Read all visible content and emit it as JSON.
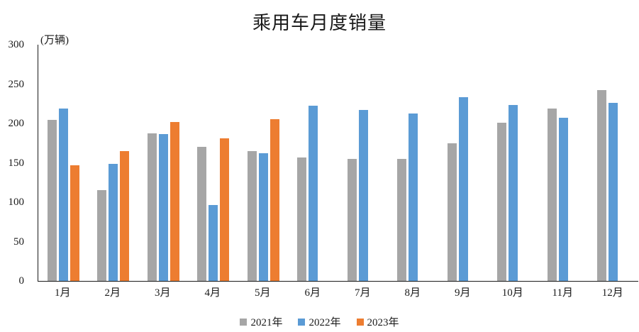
{
  "chart": {
    "title": "乘用车月度销量",
    "unit_label": "(万辆)"
  },
  "chart_data": {
    "type": "bar",
    "title": "乘用车月度销量",
    "xlabel": "",
    "ylabel": "(万辆)",
    "categories": [
      "1月",
      "2月",
      "3月",
      "4月",
      "5月",
      "6月",
      "7月",
      "8月",
      "9月",
      "10月",
      "11月",
      "12月"
    ],
    "series": [
      {
        "name": "2021年",
        "color": "#A6A6A6",
        "values": [
          204.5,
          115.6,
          187.4,
          170.4,
          164.6,
          156.9,
          155.1,
          155.2,
          175.1,
          200.7,
          219.2,
          242.2
        ]
      },
      {
        "name": "2022年",
        "color": "#5B9BD5",
        "values": [
          218.6,
          148.7,
          186.4,
          96.5,
          162.3,
          222.2,
          217.4,
          212.5,
          233.2,
          223.1,
          207.5,
          226.3
        ]
      },
      {
        "name": "2023年",
        "color": "#ED7D31",
        "values": [
          146.9,
          165.3,
          201.7,
          181.1,
          205.1,
          null,
          null,
          null,
          null,
          null,
          null,
          null
        ]
      }
    ],
    "ylim": [
      0,
      300
    ],
    "yticks": [
      0,
      50,
      100,
      150,
      200,
      250,
      300
    ],
    "grid": false,
    "legend_position": "bottom"
  }
}
